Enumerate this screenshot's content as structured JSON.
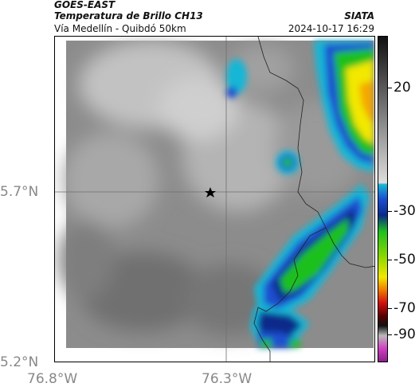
{
  "header": {
    "title": "GOES-EAST",
    "subtitle": "Temperatura de Brillo CH13",
    "organization": "SIATA",
    "area": "Vía Medellín - Quibdó 50km",
    "timestamp": "2024-10-17 16:29"
  },
  "axes": {
    "lat_labels": [
      "5.7°N",
      "5.2°N"
    ],
    "lon_labels": [
      "76.8°W",
      "76.3°W"
    ]
  },
  "colorbar": {
    "labels": [
      "20",
      "-30",
      "-50",
      "-70",
      "-90"
    ],
    "colors": {
      "warm_gray": "#8a8a8a",
      "cyan": "#19b6d6",
      "blue": "#1d4fd0",
      "dark_blue": "#0a2a8a",
      "green": "#1fc01f",
      "yellow": "#f2e800",
      "orange": "#f07a00",
      "red": "#d01010",
      "dark_red": "#5a0000",
      "black": "#111111",
      "magenta": "#d040c0"
    }
  },
  "map": {
    "marker_icon": "star-icon"
  }
}
